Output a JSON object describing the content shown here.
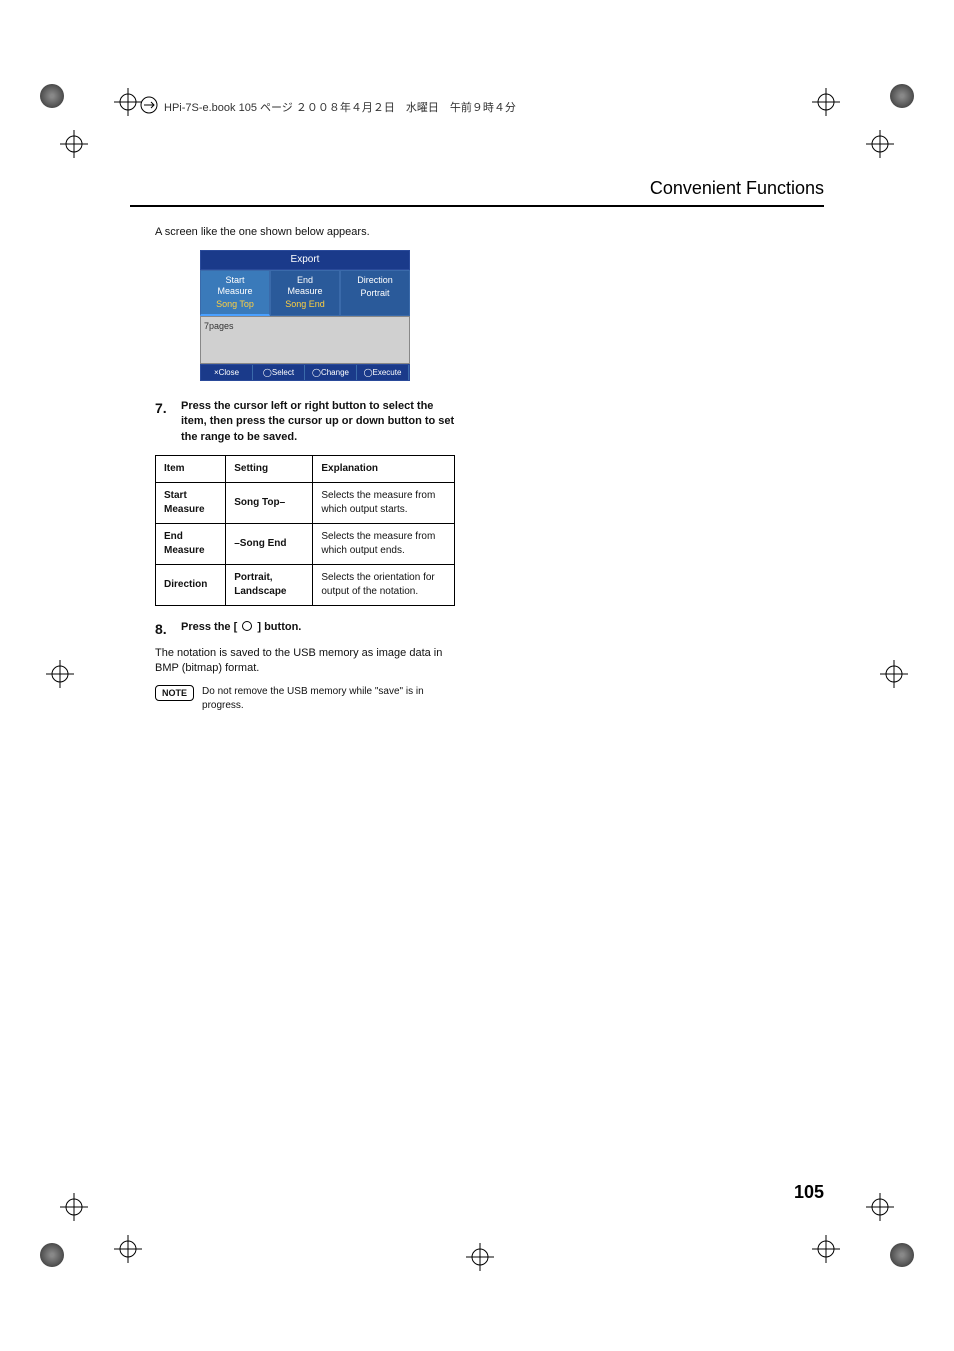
{
  "header_meta": "HPi-7S-e.book  105 ページ  ２００８年４月２日　水曜日　午前９時４分",
  "page_title": "Convenient Functions",
  "intro_text": "A screen like the one shown below appears.",
  "screen": {
    "title": "Export",
    "tabs": [
      {
        "label": "Start\nMeasure",
        "value": "Song Top"
      },
      {
        "label": "End\nMeasure",
        "value": "Song End"
      },
      {
        "label": "Direction",
        "value": "Portrait"
      }
    ],
    "body": "7pages",
    "footer": [
      "×Close",
      "◯Select",
      "◯Change",
      "◯Execute"
    ]
  },
  "step7": {
    "num": "7.",
    "text": "Press the cursor left or right button to select the item, then press the cursor up or down button to set the range to be saved."
  },
  "table": {
    "headers": [
      "Item",
      "Setting",
      "Explanation"
    ],
    "rows": [
      {
        "item": "Start Measure",
        "setting": "Song Top–",
        "explanation": "Selects the measure from which output starts."
      },
      {
        "item": "End Measure",
        "setting": "–Song End",
        "explanation": "Selects the measure from which output ends."
      },
      {
        "item": "Direction",
        "setting": "Portrait, Landscape",
        "explanation": "Selects the orientation for output of the notation."
      }
    ]
  },
  "step8": {
    "num": "8.",
    "text_before": "Press the [ ",
    "text_after": " ] button."
  },
  "after_step8": "The notation is saved to the USB memory as image data in BMP (bitmap) format.",
  "note_label": "NOTE",
  "note_text": "Do not remove the USB memory while \"save\" is in progress.",
  "page_number": "105",
  "colors": {
    "screen_bg_dark": "#1a3a8a",
    "screen_tab": "#2a5a9a",
    "screen_highlight": "#ffd040",
    "screen_body": "#d0d0d0",
    "border": "#000000"
  }
}
